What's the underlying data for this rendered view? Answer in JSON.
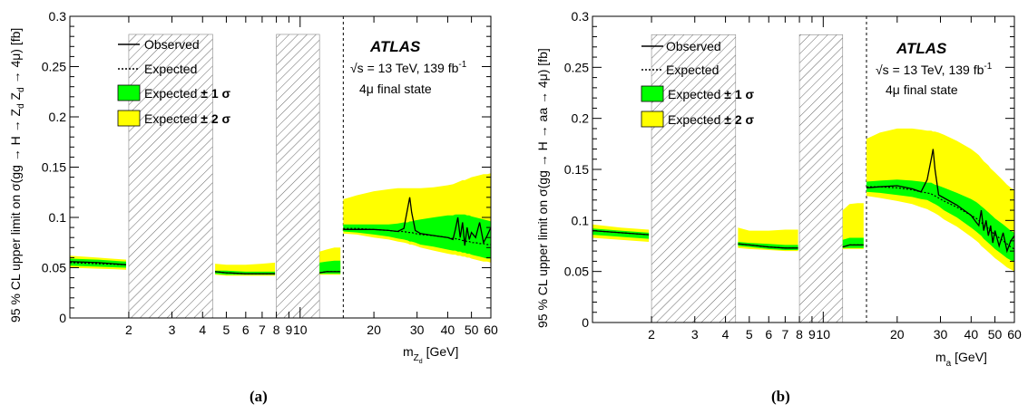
{
  "chart_data": [
    {
      "type": "line",
      "panel_label": "(a)",
      "atlas_label": "ATLAS",
      "energy_label": "√s = 13 TeV, 139 fb",
      "energy_sup": "-1",
      "state_label": "4μ final state",
      "xlabel": "m",
      "xlabel_sub": "Z",
      "xlabel_subsub": "d",
      "xlabel_unit": " [GeV]",
      "ylabel": "95 % CL upper limit on σ(gg → H → Z_d Z_d → 4μ) [fb]",
      "x_scale": "log",
      "xlim": [
        1.15,
        60
      ],
      "ylim": [
        0,
        0.3
      ],
      "x_ticks": [
        2,
        3,
        4,
        5,
        6,
        7,
        8,
        9,
        10,
        20,
        30,
        40,
        50,
        60
      ],
      "x_tick_labels": [
        "2",
        "3",
        "4",
        "5",
        "6",
        "7",
        "8",
        "9",
        "10",
        "20",
        "30",
        "40",
        "50",
        "60"
      ],
      "y_ticks": [
        0,
        0.05,
        0.1,
        0.15,
        0.2,
        0.25,
        0.3
      ],
      "y_tick_labels": [
        "0",
        "0.05",
        "0.1",
        "0.15",
        "0.2",
        "0.25",
        "0.3"
      ],
      "excluded_regions": [
        [
          2.0,
          4.4
        ],
        [
          8.0,
          12.0
        ]
      ],
      "dashed_line_x": 15,
      "legend": {
        "position": "top-left",
        "observed": "Observed",
        "expected": "Expected",
        "band1": "Expected ",
        "band1_bold": "± 1 σ",
        "band2": "Expected ",
        "band2_bold": "± 2 σ"
      },
      "segments": [
        {
          "x": [
            1.15,
            1.5,
            1.95
          ],
          "obs": [
            0.056,
            0.055,
            0.053
          ],
          "exp": [
            0.055,
            0.054,
            0.053
          ],
          "b1lo": [
            0.052,
            0.051,
            0.05
          ],
          "b1hi": [
            0.059,
            0.058,
            0.056
          ],
          "b2lo": [
            0.05,
            0.049,
            0.048
          ],
          "b2hi": [
            0.062,
            0.06,
            0.058
          ]
        },
        {
          "x": [
            4.5,
            5,
            6,
            7,
            7.9
          ],
          "obs": [
            0.046,
            0.045,
            0.044,
            0.044,
            0.044
          ],
          "exp": [
            0.046,
            0.045,
            0.044,
            0.044,
            0.044
          ],
          "b1lo": [
            0.044,
            0.043,
            0.043,
            0.043,
            0.043
          ],
          "b1hi": [
            0.047,
            0.047,
            0.046,
            0.046,
            0.046
          ],
          "b2lo": [
            0.043,
            0.042,
            0.042,
            0.042,
            0.042
          ],
          "b2hi": [
            0.054,
            0.053,
            0.053,
            0.054,
            0.055
          ]
        },
        {
          "x": [
            12.0,
            12.8,
            13.8,
            14.6
          ],
          "obs": [
            0.045,
            0.046,
            0.046,
            0.046
          ],
          "exp": [
            0.045,
            0.046,
            0.046,
            0.046
          ],
          "b1lo": [
            0.044,
            0.044,
            0.044,
            0.044
          ],
          "b1hi": [
            0.055,
            0.056,
            0.057,
            0.057
          ],
          "b2lo": [
            0.043,
            0.043,
            0.043,
            0.043
          ],
          "b2hi": [
            0.066,
            0.068,
            0.07,
            0.07
          ]
        },
        {
          "x": [
            15,
            17,
            20,
            23,
            25,
            26.5,
            27.5,
            28,
            28.5,
            29.5,
            31,
            35,
            40,
            42,
            43,
            44,
            45,
            46,
            47,
            48,
            49,
            50,
            52,
            54,
            56,
            58,
            60
          ],
          "obs": [
            0.088,
            0.088,
            0.088,
            0.087,
            0.086,
            0.089,
            0.11,
            0.12,
            0.105,
            0.087,
            0.084,
            0.082,
            0.08,
            0.078,
            0.088,
            0.1,
            0.08,
            0.095,
            0.072,
            0.09,
            0.078,
            0.085,
            0.08,
            0.095,
            0.075,
            0.082,
            0.09
          ],
          "exp": [
            0.089,
            0.089,
            0.088,
            0.087,
            0.086,
            0.086,
            0.085,
            0.085,
            0.085,
            0.084,
            0.083,
            0.082,
            0.08,
            0.079,
            0.079,
            0.078,
            0.078,
            0.077,
            0.077,
            0.076,
            0.076,
            0.075,
            0.075,
            0.074,
            0.074,
            0.073,
            0.073
          ],
          "b1lo": [
            0.086,
            0.085,
            0.083,
            0.081,
            0.079,
            0.078,
            0.077,
            0.076,
            0.076,
            0.075,
            0.073,
            0.071,
            0.068,
            0.067,
            0.067,
            0.066,
            0.066,
            0.065,
            0.065,
            0.064,
            0.064,
            0.063,
            0.062,
            0.061,
            0.06,
            0.059,
            0.059
          ],
          "b1hi": [
            0.093,
            0.093,
            0.093,
            0.093,
            0.094,
            0.095,
            0.095,
            0.096,
            0.096,
            0.097,
            0.098,
            0.1,
            0.102,
            0.102,
            0.103,
            0.103,
            0.103,
            0.103,
            0.103,
            0.102,
            0.102,
            0.101,
            0.1,
            0.099,
            0.098,
            0.097,
            0.096
          ],
          "b2lo": [
            0.084,
            0.083,
            0.08,
            0.078,
            0.076,
            0.075,
            0.074,
            0.073,
            0.073,
            0.072,
            0.07,
            0.067,
            0.064,
            0.063,
            0.063,
            0.062,
            0.062,
            0.061,
            0.061,
            0.06,
            0.06,
            0.059,
            0.058,
            0.057,
            0.056,
            0.056,
            0.055
          ],
          "b2hi": [
            0.118,
            0.122,
            0.126,
            0.128,
            0.129,
            0.129,
            0.129,
            0.129,
            0.129,
            0.129,
            0.129,
            0.13,
            0.132,
            0.133,
            0.134,
            0.135,
            0.136,
            0.137,
            0.137,
            0.138,
            0.139,
            0.14,
            0.141,
            0.142,
            0.143,
            0.143,
            0.144
          ]
        }
      ]
    },
    {
      "type": "line",
      "panel_label": "(b)",
      "atlas_label": "ATLAS",
      "energy_label": "√s = 13 TeV, 139 fb",
      "energy_sup": "-1",
      "state_label": "4μ final state",
      "xlabel": "m",
      "xlabel_sub": "a",
      "xlabel_subsub": "",
      "xlabel_unit": " [GeV]",
      "ylabel": "95 % CL upper limit on σ(gg → H → aa → 4μ) [fb]",
      "x_scale": "log",
      "xlim": [
        1.15,
        60
      ],
      "ylim": [
        0,
        0.3
      ],
      "x_ticks": [
        2,
        3,
        4,
        5,
        6,
        7,
        8,
        9,
        10,
        20,
        30,
        40,
        50,
        60
      ],
      "x_tick_labels": [
        "2",
        "3",
        "4",
        "5",
        "6",
        "7",
        "8",
        "9",
        "10",
        "20",
        "30",
        "40",
        "50",
        "60"
      ],
      "y_ticks": [
        0,
        0.05,
        0.1,
        0.15,
        0.2,
        0.25,
        0.3
      ],
      "y_tick_labels": [
        "0",
        "0.05",
        "0.1",
        "0.15",
        "0.2",
        "0.25",
        "0.3"
      ],
      "excluded_regions": [
        [
          2.0,
          4.4
        ],
        [
          8.0,
          12.0
        ]
      ],
      "dashed_line_x": 15,
      "legend": {
        "position": "top-left",
        "observed": "Observed",
        "expected": "Expected",
        "band1": "Expected ",
        "band1_bold": "± 1 σ",
        "band2": "Expected ",
        "band2_bold": "± 2 σ"
      },
      "segments": [
        {
          "x": [
            1.15,
            1.5,
            1.95
          ],
          "obs": [
            0.09,
            0.088,
            0.086
          ],
          "exp": [
            0.09,
            0.088,
            0.086
          ],
          "b1lo": [
            0.086,
            0.084,
            0.082
          ],
          "b1hi": [
            0.092,
            0.09,
            0.088
          ],
          "b2lo": [
            0.083,
            0.081,
            0.079
          ],
          "b2hi": [
            0.096,
            0.093,
            0.091
          ]
        },
        {
          "x": [
            4.5,
            5,
            6,
            7,
            7.9
          ],
          "obs": [
            0.077,
            0.076,
            0.074,
            0.073,
            0.073
          ],
          "exp": [
            0.077,
            0.076,
            0.074,
            0.073,
            0.073
          ],
          "b1lo": [
            0.075,
            0.074,
            0.072,
            0.071,
            0.071
          ],
          "b1hi": [
            0.079,
            0.078,
            0.077,
            0.076,
            0.076
          ],
          "b2lo": [
            0.073,
            0.072,
            0.071,
            0.07,
            0.07
          ],
          "b2hi": [
            0.093,
            0.09,
            0.09,
            0.091,
            0.091
          ]
        },
        {
          "x": [
            12.0,
            12.8,
            13.8,
            14.6
          ],
          "obs": [
            0.074,
            0.076,
            0.076,
            0.076
          ],
          "exp": [
            0.074,
            0.076,
            0.076,
            0.076
          ],
          "b1lo": [
            0.073,
            0.073,
            0.073,
            0.073
          ],
          "b1hi": [
            0.081,
            0.083,
            0.083,
            0.083
          ],
          "b2lo": [
            0.072,
            0.072,
            0.072,
            0.072
          ],
          "b2hi": [
            0.11,
            0.116,
            0.117,
            0.117
          ]
        },
        {
          "x": [
            15,
            17,
            20,
            23,
            25,
            26.5,
            27.5,
            28,
            28.5,
            29.5,
            31,
            35,
            40,
            42,
            43,
            44,
            45,
            46,
            47,
            48,
            49,
            50,
            52,
            54,
            56,
            58,
            60
          ],
          "obs": [
            0.132,
            0.133,
            0.134,
            0.131,
            0.128,
            0.14,
            0.16,
            0.17,
            0.15,
            0.125,
            0.122,
            0.115,
            0.105,
            0.098,
            0.095,
            0.11,
            0.09,
            0.1,
            0.085,
            0.095,
            0.078,
            0.09,
            0.075,
            0.088,
            0.07,
            0.08,
            0.085
          ],
          "exp": [
            0.133,
            0.133,
            0.132,
            0.13,
            0.128,
            0.127,
            0.126,
            0.125,
            0.124,
            0.122,
            0.119,
            0.113,
            0.105,
            0.102,
            0.1,
            0.098,
            0.096,
            0.094,
            0.092,
            0.09,
            0.088,
            0.086,
            0.083,
            0.08,
            0.077,
            0.074,
            0.072
          ],
          "b1lo": [
            0.128,
            0.127,
            0.125,
            0.123,
            0.121,
            0.12,
            0.118,
            0.117,
            0.116,
            0.114,
            0.11,
            0.103,
            0.093,
            0.089,
            0.087,
            0.085,
            0.082,
            0.08,
            0.078,
            0.076,
            0.074,
            0.072,
            0.069,
            0.066,
            0.063,
            0.061,
            0.059
          ],
          "b1hi": [
            0.138,
            0.139,
            0.14,
            0.139,
            0.138,
            0.137,
            0.137,
            0.136,
            0.135,
            0.134,
            0.132,
            0.127,
            0.121,
            0.118,
            0.116,
            0.114,
            0.112,
            0.11,
            0.108,
            0.106,
            0.104,
            0.102,
            0.099,
            0.096,
            0.093,
            0.09,
            0.088
          ],
          "b2lo": [
            0.124,
            0.122,
            0.119,
            0.116,
            0.113,
            0.111,
            0.109,
            0.108,
            0.107,
            0.105,
            0.101,
            0.094,
            0.084,
            0.08,
            0.078,
            0.075,
            0.073,
            0.071,
            0.069,
            0.067,
            0.065,
            0.063,
            0.06,
            0.057,
            0.054,
            0.052,
            0.05
          ],
          "b2hi": [
            0.18,
            0.186,
            0.19,
            0.19,
            0.189,
            0.188,
            0.188,
            0.187,
            0.187,
            0.186,
            0.184,
            0.178,
            0.17,
            0.166,
            0.164,
            0.161,
            0.158,
            0.156,
            0.154,
            0.151,
            0.149,
            0.147,
            0.143,
            0.139,
            0.135,
            0.132,
            0.13
          ]
        }
      ]
    }
  ]
}
